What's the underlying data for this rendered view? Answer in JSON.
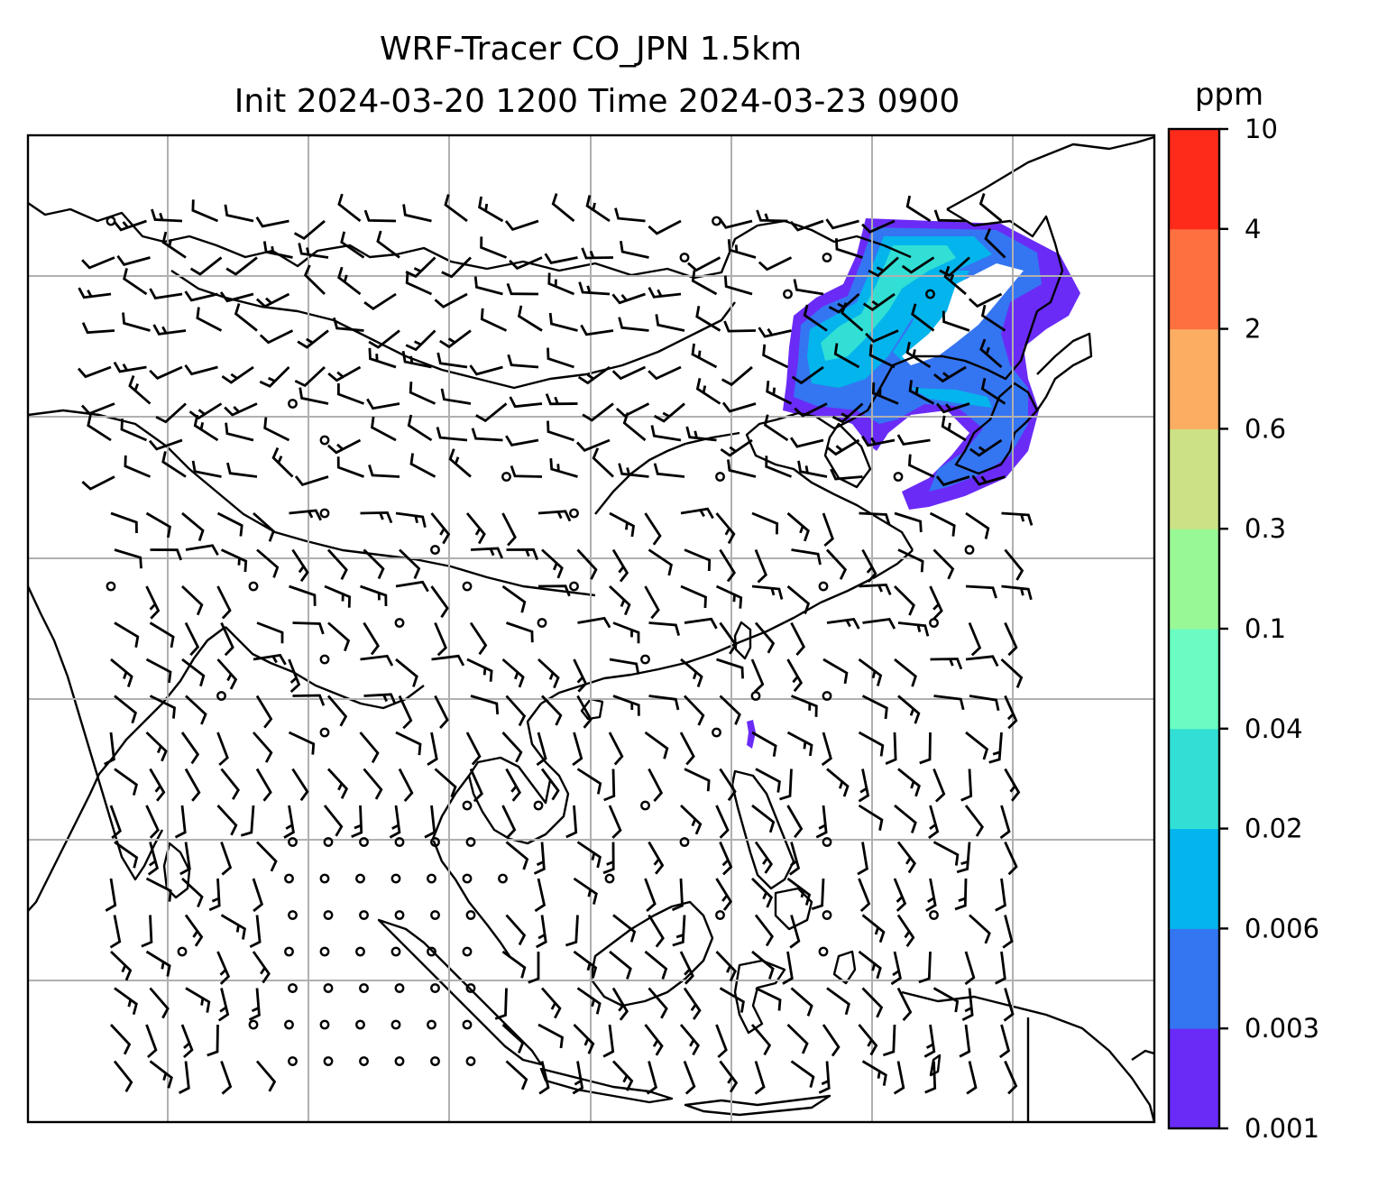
{
  "title": {
    "line1": "WRF-Tracer CO_JPN 1.5km",
    "line2": "Init 2024-03-20 1200 Time 2024-03-23 0900"
  },
  "colorbar": {
    "unit": "ppm",
    "ticks": [
      "0.001",
      "0.003",
      "0.006",
      "0.02",
      "0.04",
      "0.1",
      "0.3",
      "0.6",
      "2",
      "4",
      "10"
    ],
    "colors": [
      "#6a2bf7",
      "#3475f2",
      "#04b4ec",
      "#31dfd5",
      "#6afcc1",
      "#99f896",
      "#cce185",
      "#fdad62",
      "#fe7040",
      "#ff2b1a"
    ]
  },
  "plume": {
    "colors_present": [
      "#6a2bf7",
      "#3475f2",
      "#04b4ec",
      "#31dfd5"
    ]
  },
  "overlays": {
    "coastlines": true,
    "gridlines": true,
    "wind_barbs": true
  }
}
